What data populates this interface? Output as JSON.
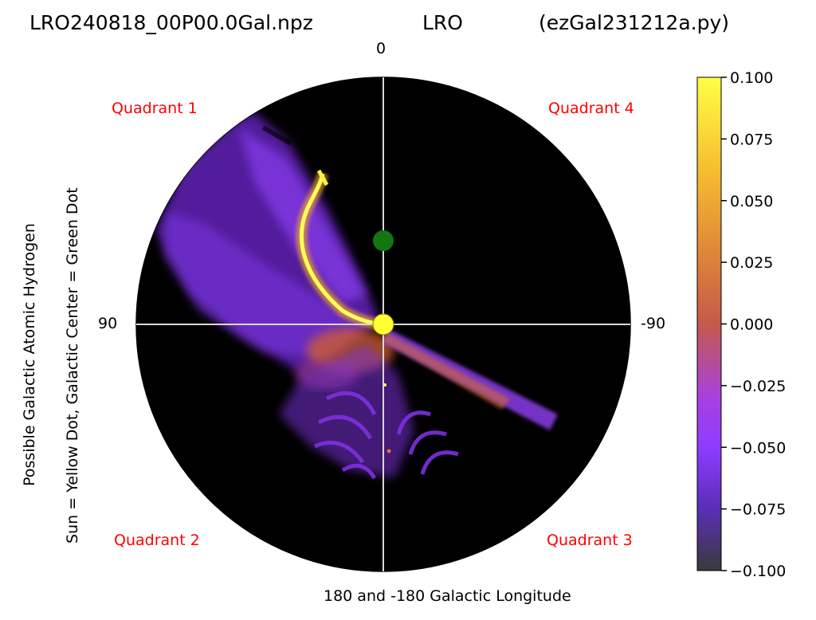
{
  "header": {
    "file": "LRO240818_00P00.0Gal.npz",
    "station": "LRO",
    "script": "(ezGal231212a.py)"
  },
  "polar": {
    "top_label": "0",
    "left_label": "90",
    "right_label": "-90",
    "bottom_label": "180 and -180 Galactic Longitude",
    "quadrants": [
      "Quadrant 1",
      "Quadrant 4",
      "Quadrant 2",
      "Quadrant 3"
    ]
  },
  "ylabel": {
    "line1": "Possible Galactic Atomic Hydrogen",
    "line2": "Sun = Yellow Dot, Galactic Center = Green Dot"
  },
  "chart_data": {
    "type": "heatmap",
    "projection": "polar",
    "colormap": "gnuplot-like (dark purple → violet → orange → yellow)",
    "colors": {
      "background": "#000000",
      "sun": "#ffff33",
      "galactic_center": "#117711",
      "quadrant_text": "#ff0000"
    },
    "colorbar": {
      "vmin": -0.1,
      "vmax": 0.1,
      "ticks": [
        "0.100",
        "0.075",
        "0.050",
        "0.025",
        "0.000",
        "−0.025",
        "−0.050",
        "−0.075",
        "−0.100"
      ]
    }
  }
}
